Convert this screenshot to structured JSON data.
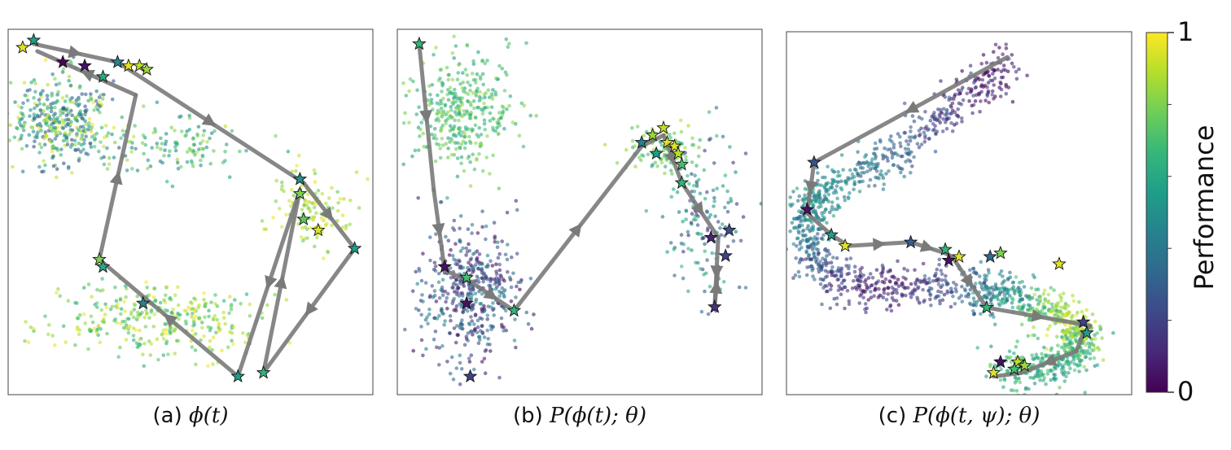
{
  "colorbar": {
    "label": "Performance",
    "tick_min": "0",
    "tick_max": "1",
    "colormap": "viridis",
    "colors": [
      "#440154",
      "#482878",
      "#3e4989",
      "#31688e",
      "#26828e",
      "#1f9e89",
      "#35b779",
      "#6ece58",
      "#b5de2b",
      "#fde725"
    ]
  },
  "style": {
    "arrow_color": "#7a7a7a",
    "star_edge": "#111111",
    "frame_color": "#444444"
  },
  "chart_data": [
    {
      "type": "scatter",
      "caption_prefix": "(a)",
      "caption_math": "ϕ(t)",
      "xlim": [
        0,
        1
      ],
      "ylim": [
        0,
        1
      ],
      "clusters": [
        {
          "cx": 0.15,
          "cy": 0.75,
          "sx": 0.07,
          "sy": 0.06,
          "n": 380,
          "p_min": 0.2,
          "p_max": 1.0
        },
        {
          "cx": 0.45,
          "cy": 0.68,
          "sx": 0.1,
          "sy": 0.04,
          "n": 120,
          "p_min": 0.4,
          "p_max": 0.9
        },
        {
          "cx": 0.83,
          "cy": 0.51,
          "sx": 0.05,
          "sy": 0.05,
          "n": 120,
          "p_min": 0.75,
          "p_max": 1.0
        },
        {
          "cx": 0.4,
          "cy": 0.21,
          "sx": 0.16,
          "sy": 0.05,
          "n": 330,
          "p_min": 0.6,
          "p_max": 1.0
        }
      ],
      "path": [
        [
          0.07,
          0.96
        ],
        [
          0.3,
          0.91
        ],
        [
          0.81,
          0.58
        ],
        [
          0.95,
          0.4
        ],
        [
          0.7,
          0.06
        ],
        [
          0.8,
          0.56
        ],
        [
          0.63,
          0.05
        ],
        [
          0.25,
          0.37
        ],
        [
          0.35,
          0.82
        ],
        [
          0.08,
          0.94
        ]
      ],
      "stars": [
        {
          "x": 0.04,
          "y": 0.95,
          "p": 0.95
        },
        {
          "x": 0.07,
          "y": 0.97,
          "p": 0.55
        },
        {
          "x": 0.15,
          "y": 0.91,
          "p": 0.02
        },
        {
          "x": 0.21,
          "y": 0.9,
          "p": 0.05
        },
        {
          "x": 0.3,
          "y": 0.91,
          "p": 0.45
        },
        {
          "x": 0.33,
          "y": 0.9,
          "p": 0.95
        },
        {
          "x": 0.36,
          "y": 0.9,
          "p": 0.9
        },
        {
          "x": 0.38,
          "y": 0.89,
          "p": 0.85
        },
        {
          "x": 0.26,
          "y": 0.87,
          "p": 0.6
        },
        {
          "x": 0.8,
          "y": 0.59,
          "p": 0.5
        },
        {
          "x": 0.8,
          "y": 0.55,
          "p": 0.8
        },
        {
          "x": 0.81,
          "y": 0.48,
          "p": 0.75
        },
        {
          "x": 0.85,
          "y": 0.45,
          "p": 0.95
        },
        {
          "x": 0.95,
          "y": 0.4,
          "p": 0.55
        },
        {
          "x": 0.25,
          "y": 0.37,
          "p": 0.8
        },
        {
          "x": 0.26,
          "y": 0.35,
          "p": 0.6
        },
        {
          "x": 0.37,
          "y": 0.25,
          "p": 0.45
        },
        {
          "x": 0.63,
          "y": 0.05,
          "p": 0.55
        },
        {
          "x": 0.7,
          "y": 0.06,
          "p": 0.65
        }
      ]
    },
    {
      "type": "scatter",
      "caption_prefix": "(b)",
      "caption_math": "P(ϕ(t); θ)",
      "xlim": [
        0,
        1
      ],
      "ylim": [
        0,
        1
      ],
      "clusters": [
        {
          "cx": 0.18,
          "cy": 0.77,
          "sx": 0.07,
          "sy": 0.08,
          "n": 360,
          "p_min": 0.55,
          "p_max": 0.85
        },
        {
          "cx": 0.2,
          "cy": 0.28,
          "sx": 0.07,
          "sy": 0.09,
          "n": 460,
          "p_min": 0.0,
          "p_max": 0.5
        },
        {
          "cx": 0.73,
          "cy": 0.67,
          "sx": 0.05,
          "sy": 0.03,
          "n": 100,
          "p_min": 0.6,
          "p_max": 0.9
        },
        {
          "cx": 0.83,
          "cy": 0.47,
          "sx": 0.06,
          "sy": 0.1,
          "n": 140,
          "p_min": 0.1,
          "p_max": 0.7
        }
      ],
      "path": [
        [
          0.06,
          0.96
        ],
        [
          0.1,
          0.56
        ],
        [
          0.13,
          0.34
        ],
        [
          0.2,
          0.31
        ],
        [
          0.32,
          0.23
        ],
        [
          0.67,
          0.68
        ],
        [
          0.73,
          0.71
        ],
        [
          0.78,
          0.58
        ],
        [
          0.88,
          0.43
        ],
        [
          0.87,
          0.24
        ],
        [
          0.88,
          0.35
        ]
      ],
      "stars": [
        {
          "x": 0.06,
          "y": 0.96,
          "p": 0.65
        },
        {
          "x": 0.13,
          "y": 0.35,
          "p": 0.05
        },
        {
          "x": 0.19,
          "y": 0.32,
          "p": 0.7
        },
        {
          "x": 0.19,
          "y": 0.25,
          "p": 0.05
        },
        {
          "x": 0.2,
          "y": 0.05,
          "p": 0.2
        },
        {
          "x": 0.32,
          "y": 0.23,
          "p": 0.65
        },
        {
          "x": 0.67,
          "y": 0.69,
          "p": 0.45
        },
        {
          "x": 0.71,
          "y": 0.66,
          "p": 0.55
        },
        {
          "x": 0.7,
          "y": 0.71,
          "p": 0.85
        },
        {
          "x": 0.73,
          "y": 0.73,
          "p": 0.9
        },
        {
          "x": 0.74,
          "y": 0.69,
          "p": 0.95
        },
        {
          "x": 0.76,
          "y": 0.68,
          "p": 0.95
        },
        {
          "x": 0.77,
          "y": 0.66,
          "p": 0.9
        },
        {
          "x": 0.78,
          "y": 0.63,
          "p": 0.7
        },
        {
          "x": 0.78,
          "y": 0.58,
          "p": 0.65
        },
        {
          "x": 0.86,
          "y": 0.43,
          "p": 0.1
        },
        {
          "x": 0.91,
          "y": 0.45,
          "p": 0.25
        },
        {
          "x": 0.9,
          "y": 0.38,
          "p": 0.2
        },
        {
          "x": 0.87,
          "y": 0.24,
          "p": 0.15
        }
      ]
    },
    {
      "type": "scatter",
      "caption_prefix": "(c)",
      "caption_math": "P(ϕ(t, ψ); θ)",
      "xlim": [
        0,
        1
      ],
      "ylim": [
        0,
        1
      ],
      "curve": [
        [
          0.65,
          0.92
        ],
        [
          0.52,
          0.82
        ],
        [
          0.35,
          0.68
        ],
        [
          0.15,
          0.58
        ],
        [
          0.06,
          0.52
        ],
        [
          0.06,
          0.4
        ],
        [
          0.12,
          0.33
        ],
        [
          0.25,
          0.3
        ],
        [
          0.4,
          0.3
        ],
        [
          0.55,
          0.29
        ],
        [
          0.65,
          0.27
        ],
        [
          0.75,
          0.24
        ],
        [
          0.82,
          0.2
        ],
        [
          0.86,
          0.15
        ],
        [
          0.82,
          0.09
        ],
        [
          0.72,
          0.07
        ],
        [
          0.62,
          0.07
        ]
      ],
      "curve_points": 1700,
      "curve_spread": 0.03,
      "curve_p": [
        0.05,
        0.1,
        0.3,
        0.5,
        0.5,
        0.35,
        0.2,
        0.1,
        0.15,
        0.35,
        0.5,
        0.8,
        0.9,
        0.75,
        0.55,
        0.65,
        0.7
      ],
      "path": [
        [
          0.64,
          0.93
        ],
        [
          0.08,
          0.64
        ],
        [
          0.06,
          0.5
        ],
        [
          0.13,
          0.44
        ],
        [
          0.18,
          0.41
        ],
        [
          0.36,
          0.42
        ],
        [
          0.46,
          0.39
        ],
        [
          0.48,
          0.38
        ],
        [
          0.58,
          0.24
        ],
        [
          0.88,
          0.19
        ],
        [
          0.86,
          0.17
        ],
        [
          0.84,
          0.12
        ],
        [
          0.68,
          0.06
        ],
        [
          0.6,
          0.05
        ]
      ],
      "stars": [
        {
          "x": 0.08,
          "y": 0.64,
          "p": 0.25
        },
        {
          "x": 0.06,
          "y": 0.51,
          "p": 0.05
        },
        {
          "x": 0.13,
          "y": 0.44,
          "p": 0.55
        },
        {
          "x": 0.17,
          "y": 0.41,
          "p": 0.95
        },
        {
          "x": 0.36,
          "y": 0.42,
          "p": 0.3
        },
        {
          "x": 0.46,
          "y": 0.4,
          "p": 0.65
        },
        {
          "x": 0.47,
          "y": 0.37,
          "p": 0.05
        },
        {
          "x": 0.5,
          "y": 0.38,
          "p": 0.95
        },
        {
          "x": 0.59,
          "y": 0.38,
          "p": 0.35
        },
        {
          "x": 0.62,
          "y": 0.39,
          "p": 0.8
        },
        {
          "x": 0.79,
          "y": 0.36,
          "p": 0.95
        },
        {
          "x": 0.58,
          "y": 0.24,
          "p": 0.65
        },
        {
          "x": 0.86,
          "y": 0.2,
          "p": 0.2
        },
        {
          "x": 0.87,
          "y": 0.17,
          "p": 0.55
        },
        {
          "x": 0.62,
          "y": 0.09,
          "p": 0.05
        },
        {
          "x": 0.6,
          "y": 0.06,
          "p": 0.95
        },
        {
          "x": 0.67,
          "y": 0.09,
          "p": 0.9
        },
        {
          "x": 0.69,
          "y": 0.08,
          "p": 0.85
        },
        {
          "x": 0.66,
          "y": 0.07,
          "p": 0.7
        }
      ]
    }
  ]
}
